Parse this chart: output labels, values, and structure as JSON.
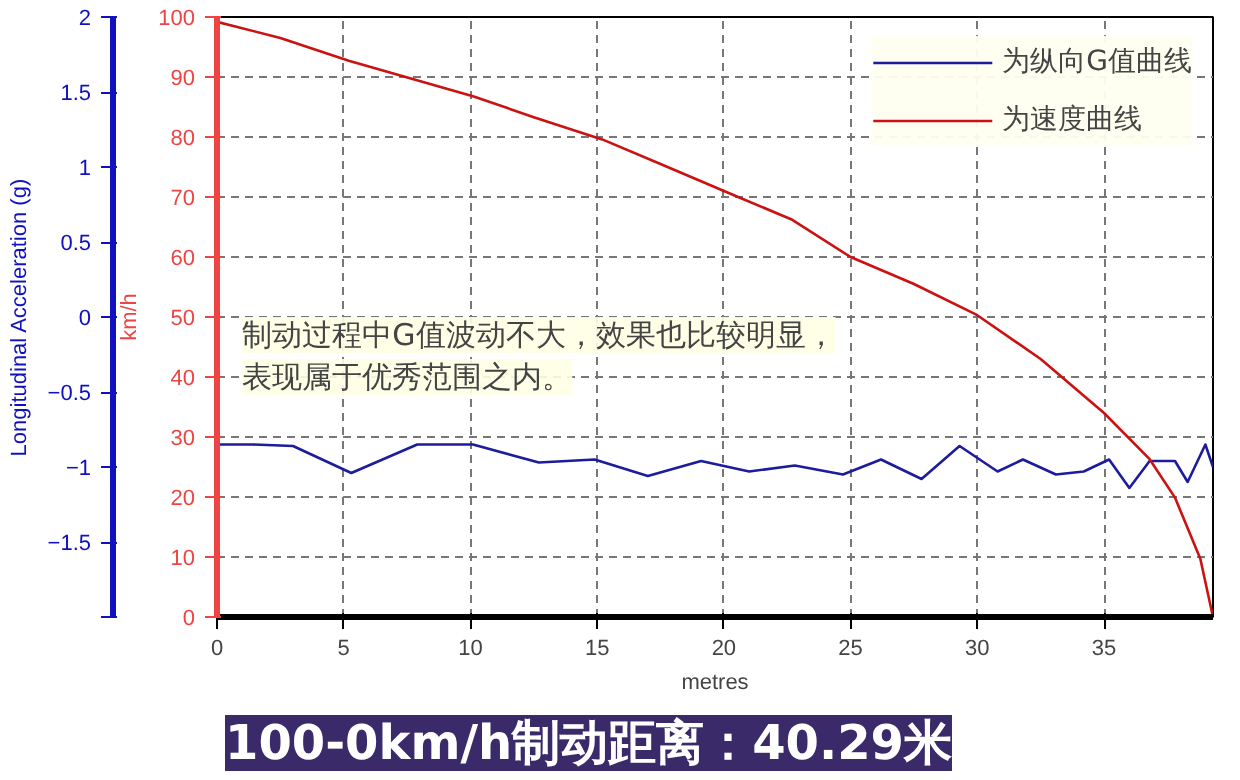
{
  "chart_data": {
    "type": "line",
    "title": "100-0km/h制动距离：40.29米",
    "xlabel": "metres",
    "ylabel": "Longitudinal Acceleration (g)",
    "y2label": "km/h",
    "xlim": [
      0,
      39.3
    ],
    "xticks": [
      0,
      5,
      10,
      15,
      20,
      25,
      30,
      35
    ],
    "ylim": [
      -2,
      2
    ],
    "yticks": [
      {
        "value": -2,
        "label": null
      },
      -1.5,
      -1,
      -0.5,
      0,
      0.5,
      1,
      1.5,
      2
    ],
    "y2lim": [
      0,
      100
    ],
    "y2ticks": [
      0,
      10,
      20,
      30,
      40,
      50,
      60,
      70,
      80,
      90,
      100
    ],
    "grid": true,
    "legend": "top right",
    "annotations": [
      "制动过程中G值波动不大，效果也比较明显，",
      "表现属于优秀范围之内。"
    ],
    "series": [
      {
        "name": "为纵向G值曲线",
        "color": "#1c1c9c",
        "x": [
          0,
          1.4,
          3.0,
          5.3,
          7.9,
          10.1,
          12.7,
          14.9,
          17.0,
          19.1,
          21.0,
          22.8,
          24.7,
          26.2,
          27.8,
          29.3,
          30.8,
          31.8,
          33.1,
          34.2,
          35.2,
          36.0,
          36.8,
          37.8,
          38.3,
          39.0,
          39.3
        ],
        "values": [
          -0.85,
          -0.85,
          -0.86,
          -1.04,
          -0.85,
          -0.85,
          -0.97,
          -0.95,
          -1.06,
          -0.96,
          -1.03,
          -0.99,
          -1.05,
          -0.95,
          -1.08,
          -0.86,
          -1.03,
          -0.95,
          -1.05,
          -1.03,
          -0.95,
          -1.14,
          -0.96,
          -0.96,
          -1.1,
          -0.85,
          -1.0
        ]
      },
      {
        "name": "为速度曲线",
        "color": "#cc1111",
        "axis": "y2",
        "x": [
          0,
          2.5,
          5.2,
          10.1,
          12.5,
          15.2,
          17.5,
          20.4,
          22.7,
          25,
          27.5,
          30,
          32.5,
          35,
          36.8,
          37.8,
          38.8,
          39.3
        ],
        "values": [
          99.2,
          96.5,
          92.7,
          86.8,
          83.3,
          79.6,
          75.5,
          70.3,
          66.2,
          60,
          55.5,
          50.3,
          43,
          34,
          26.3,
          19.9,
          9.7,
          0
        ]
      }
    ]
  }
}
